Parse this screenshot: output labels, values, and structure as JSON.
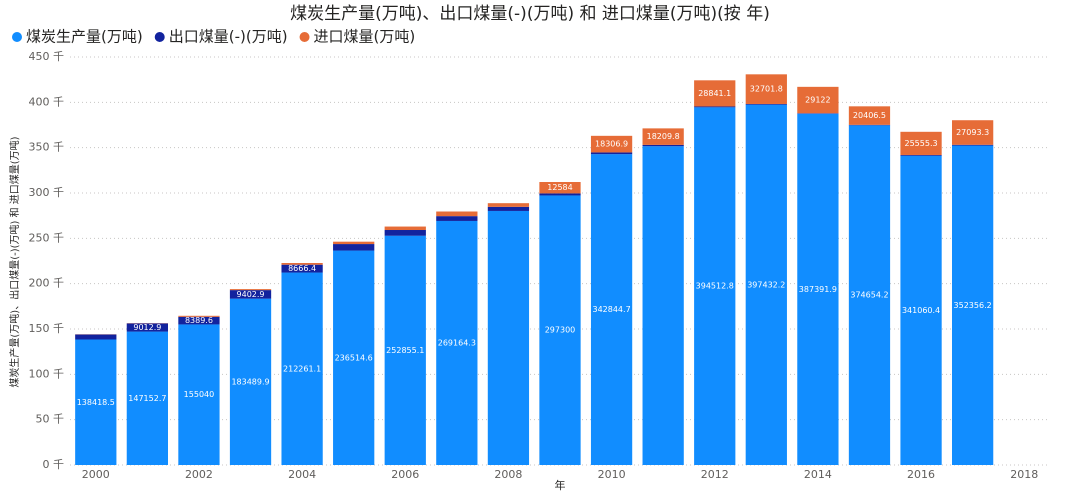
{
  "chart_data": {
    "type": "stacked-bar",
    "title": "煤炭生产量(万吨)、出口煤量(-)(万吨) 和 进口煤量(万吨)(按 年)",
    "x_label": "年",
    "y_label": "煤炭生产量(万吨)、出口煤量(-)(万吨) 和 进口煤量(万吨)",
    "x": [
      2000,
      2001,
      2002,
      2003,
      2004,
      2005,
      2006,
      2007,
      2008,
      2009,
      2010,
      2011,
      2012,
      2013,
      2014,
      2015,
      2016,
      2017
    ],
    "xlim": [
      1999.5,
      2018.5
    ],
    "xticks": [
      2000,
      2002,
      2004,
      2006,
      2008,
      2010,
      2012,
      2014,
      2016,
      2018
    ],
    "ylim": [
      0,
      450000
    ],
    "yticks": [
      {
        "value": 0,
        "label": "0 千"
      },
      {
        "value": 50000,
        "label": "50 千"
      },
      {
        "value": 100000,
        "label": "100 千"
      },
      {
        "value": 150000,
        "label": "150 千"
      },
      {
        "value": 200000,
        "label": "200 千"
      },
      {
        "value": 250000,
        "label": "250 千"
      },
      {
        "value": 300000,
        "label": "300 千"
      },
      {
        "value": 350000,
        "label": "350 千"
      },
      {
        "value": 400000,
        "label": "400 千"
      },
      {
        "value": 450000,
        "label": "450 千"
      }
    ],
    "grid": true,
    "legend": "top-left",
    "series": [
      {
        "name": "煤炭生产量(万吨)",
        "color": "#118dff",
        "values": [
          138418.5,
          147152.7,
          155040,
          183489.9,
          212261.1,
          236514.6,
          252855.1,
          269164.3,
          280200,
          297300,
          342844.7,
          351600,
          394512.8,
          397432.2,
          387391.9,
          374654.2,
          341060.4,
          352356.2
        ],
        "value_labels": [
          "138418.5",
          "147152.7",
          "155040",
          "183489.9",
          "212261.1",
          "236514.6",
          "252855.1",
          "269164.3",
          null,
          "297300",
          "342844.7",
          null,
          "394512.8",
          "397432.2",
          "387391.9",
          "374654.2",
          "341060.4",
          "352356.2"
        ]
      },
      {
        "name": "出口煤量(-)(万吨)",
        "color": "#12239e",
        "values": [
          5505,
          9012.9,
          8389.6,
          9402.9,
          8666.4,
          7172,
          6327,
          5317,
          4543,
          2240,
          1903,
          1466,
          928,
          751,
          574,
          533,
          878,
          817
        ],
        "value_labels": [
          null,
          "9012.9",
          "8389.6",
          "9402.9",
          "8666.4",
          null,
          null,
          null,
          null,
          null,
          null,
          null,
          null,
          null,
          null,
          null,
          null,
          null
        ]
      },
      {
        "name": "进口煤量(万吨)",
        "color": "#e66c37",
        "values": [
          218,
          266,
          1126,
          1110,
          1861,
          2617,
          3811,
          5102,
          4034,
          12584,
          18306.9,
          18209.8,
          28841.1,
          32701.8,
          29122,
          20406.5,
          25555.3,
          27093.3
        ],
        "value_labels": [
          null,
          null,
          null,
          null,
          null,
          null,
          null,
          null,
          null,
          "12584",
          "18306.9",
          "18209.8",
          "28841.1",
          "32701.8",
          "29122",
          "20406.5",
          "25555.3",
          "27093.3"
        ]
      }
    ]
  }
}
